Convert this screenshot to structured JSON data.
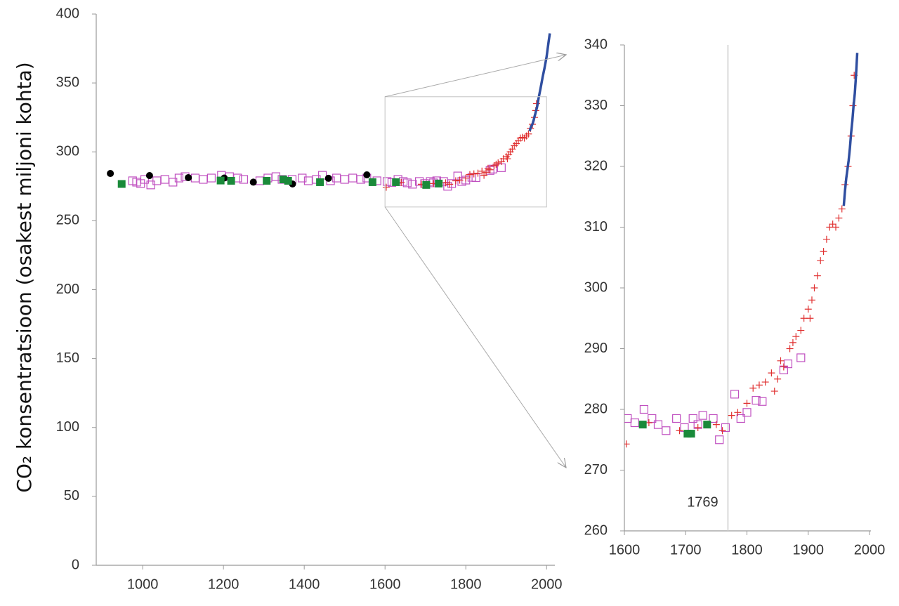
{
  "chart_data": [
    {
      "type": "scatter",
      "y_label": "CO₂ konsentratsioon (osakest miljoni kohta)",
      "xlim": [
        885,
        2010
      ],
      "ylim": [
        0,
        400
      ],
      "xticks": [
        1000,
        1200,
        1400,
        1600,
        1800,
        2000
      ],
      "yticks": [
        0,
        50,
        100,
        150,
        200,
        250,
        300,
        350,
        400
      ],
      "series": [
        {
          "marker": "open-square",
          "color": "#c050c0",
          "x": [
            975,
            985,
            995,
            1005,
            1020,
            1035,
            1055,
            1075,
            1090,
            1105,
            1130,
            1150,
            1170,
            1195,
            1215,
            1235,
            1250,
            1290,
            1310,
            1330,
            1345,
            1370,
            1395,
            1410,
            1430,
            1445,
            1465,
            1480,
            1500,
            1520,
            1540,
            1555,
            1580,
            1605,
            1617,
            1632,
            1645,
            1655,
            1668,
            1685,
            1698,
            1712,
            1720,
            1728,
            1745,
            1755,
            1765,
            1780,
            1790,
            1800,
            1815,
            1825,
            1860,
            1867,
            1888
          ],
          "values": [
            279,
            278,
            277,
            280,
            276,
            279,
            280,
            278,
            281,
            282,
            281,
            280,
            281,
            283,
            282,
            281,
            280,
            279,
            281,
            282,
            280,
            280,
            281,
            279,
            280,
            283,
            279,
            281,
            280,
            281,
            280,
            281,
            279,
            278.5,
            277.8,
            280,
            278.5,
            277.5,
            276.5,
            278.5,
            277,
            278.5,
            277.5,
            279,
            278.5,
            275,
            277,
            282.5,
            278.5,
            279.5,
            281.5,
            281.3,
            286.5,
            287.5,
            288.5
          ]
        },
        {
          "marker": "plus",
          "color": "#e03030",
          "x": [
            1603,
            1640,
            1690,
            1720,
            1750,
            1760,
            1775,
            1785,
            1800,
            1810,
            1820,
            1830,
            1840,
            1845,
            1850,
            1855,
            1860,
            1870,
            1875,
            1880,
            1888,
            1893,
            1900,
            1903,
            1906,
            1910,
            1915,
            1920,
            1925,
            1930,
            1935,
            1940,
            1945,
            1950,
            1955,
            1960,
            1965,
            1970,
            1973,
            1975
          ],
          "values": [
            274.3,
            277.8,
            276.5,
            277,
            277.5,
            276.5,
            279,
            279.5,
            281,
            283.5,
            284,
            284.5,
            286,
            283,
            285,
            288,
            287,
            290,
            291,
            292,
            293,
            295,
            296.5,
            295,
            298,
            300,
            302,
            304.5,
            306,
            308,
            310,
            310.5,
            310,
            311.5,
            313,
            317,
            320,
            325,
            330,
            335
          ]
        },
        {
          "marker": "circle",
          "color": "#000000",
          "x": [
            920,
            1017,
            1113,
            1202,
            1274,
            1371,
            1460,
            1555
          ],
          "values": [
            284.3,
            282.8,
            281.3,
            281,
            278,
            276.7,
            280.8,
            283.3
          ]
        },
        {
          "marker": "square",
          "color": "#1a8a3a",
          "x": [
            948,
            1193,
            1219,
            1307,
            1348,
            1360,
            1439,
            1569,
            1627,
            1702,
            1733
          ],
          "values": [
            276.7,
            279.2,
            279,
            279,
            280,
            279,
            278,
            278,
            278,
            276,
            277
          ]
        },
        {
          "marker": "line",
          "color": "#2f4ea0",
          "x": [
            1958,
            1960,
            1962,
            1964,
            1966,
            1968,
            1970,
            1972,
            1974,
            1976,
            1978,
            1980,
            1985,
            1990,
            1995,
            2000,
            2005,
            2008
          ],
          "values": [
            315,
            317,
            318.5,
            319.5,
            321,
            323,
            325.5,
            327.5,
            330,
            332,
            335,
            338.7,
            346,
            354,
            361,
            369,
            380,
            386
          ]
        }
      ]
    },
    {
      "type": "scatter",
      "xlim": [
        1600,
        2000
      ],
      "ylim": [
        260,
        340
      ],
      "xticks": [
        1600,
        1700,
        1800,
        1900,
        2000
      ],
      "yticks": [
        260,
        270,
        280,
        290,
        300,
        310,
        320,
        330,
        340
      ],
      "marker_line": {
        "value": 1769,
        "label": "1769"
      },
      "series": [
        {
          "marker": "open-square",
          "color": "#c050c0",
          "x": [
            1605,
            1617,
            1632,
            1645,
            1655,
            1668,
            1685,
            1698,
            1712,
            1720,
            1728,
            1745,
            1755,
            1765,
            1780,
            1790,
            1800,
            1815,
            1825,
            1860,
            1867,
            1888
          ],
          "values": [
            278.5,
            277.8,
            280,
            278.5,
            277.5,
            276.5,
            278.5,
            277,
            278.5,
            277.5,
            279,
            278.5,
            275,
            277,
            282.5,
            278.5,
            279.5,
            281.5,
            281.3,
            286.5,
            287.5,
            288.5
          ]
        },
        {
          "marker": "plus",
          "color": "#e03030",
          "x": [
            1603,
            1640,
            1690,
            1720,
            1750,
            1760,
            1775,
            1785,
            1800,
            1810,
            1820,
            1830,
            1840,
            1845,
            1850,
            1855,
            1860,
            1870,
            1875,
            1880,
            1888,
            1893,
            1900,
            1903,
            1906,
            1910,
            1915,
            1920,
            1925,
            1930,
            1935,
            1940,
            1945,
            1950,
            1955,
            1960,
            1965,
            1970,
            1973,
            1975
          ],
          "values": [
            274.3,
            277.8,
            276.5,
            277,
            277.5,
            276.5,
            279,
            279.5,
            281,
            283.5,
            284,
            284.5,
            286,
            283,
            285,
            288,
            287,
            290,
            291,
            292,
            293,
            295,
            296.5,
            295,
            298,
            300,
            302,
            304.5,
            306,
            308,
            310,
            310.5,
            310,
            311.5,
            313,
            317,
            320,
            325,
            330,
            335
          ]
        },
        {
          "marker": "square",
          "color": "#1a8a3a",
          "x": [
            1630,
            1703,
            1709,
            1735
          ],
          "values": [
            277.5,
            276,
            276,
            277.5
          ]
        },
        {
          "marker": "line",
          "color": "#2f4ea0",
          "x": [
            1958,
            1960,
            1962,
            1964,
            1966,
            1968,
            1970,
            1972,
            1974,
            1976,
            1978,
            1980
          ],
          "values": [
            313.5,
            316,
            318,
            319.5,
            321,
            323,
            325.5,
            327.5,
            330,
            332,
            335,
            338.7
          ]
        }
      ]
    }
  ]
}
